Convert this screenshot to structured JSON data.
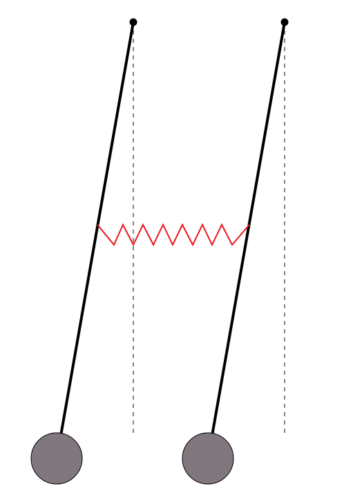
{
  "diagram": {
    "type": "coupled-pendulums",
    "pendulum_count": 2,
    "coupling": "spring",
    "colors": {
      "background": "#ffffff",
      "rod": "#000000",
      "pivot": "#000000",
      "equilibrium_line": "#333333",
      "spring": "#e8141c",
      "bob_fill": "#81777e",
      "bob_stroke": "#000000"
    }
  }
}
